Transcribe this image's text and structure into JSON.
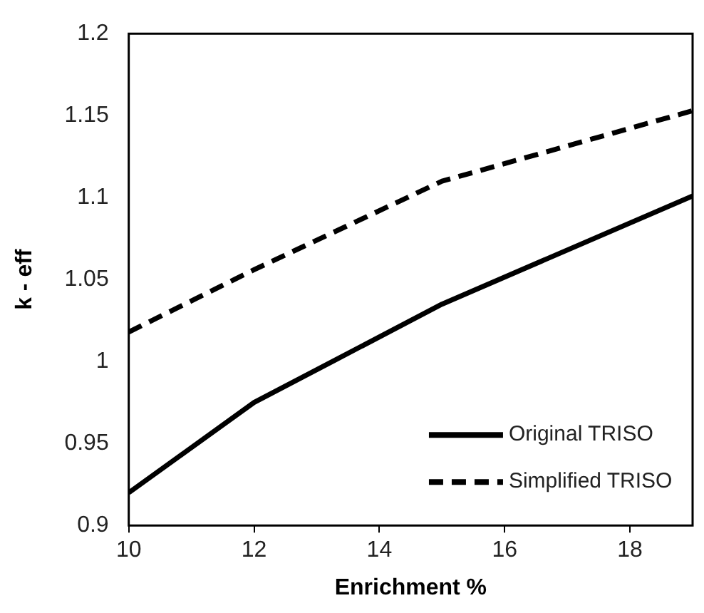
{
  "chart_data": {
    "type": "line",
    "xlabel": "Enrichment %",
    "ylabel": "k - eff",
    "xlim": [
      10,
      19
    ],
    "xticks": [
      10,
      12,
      14,
      16,
      18
    ],
    "ylim": [
      0.9,
      1.2
    ],
    "yticks": [
      0.9,
      0.95,
      1,
      1.05,
      1.1,
      1.15,
      1.2
    ],
    "grid": false,
    "legend": "bottom right",
    "marker": "none",
    "series": [
      {
        "name": "Original TRISO",
        "color": "#000000",
        "line_style": "solid",
        "x": [
          10,
          12,
          15,
          19
        ],
        "values": [
          0.92,
          0.975,
          1.035,
          1.101
        ]
      },
      {
        "name": "Simplified TRISO",
        "color": "#000000",
        "line_style": "dashed",
        "x": [
          10,
          12,
          15,
          19
        ],
        "values": [
          1.018,
          1.056,
          1.11,
          1.153
        ]
      }
    ]
  }
}
